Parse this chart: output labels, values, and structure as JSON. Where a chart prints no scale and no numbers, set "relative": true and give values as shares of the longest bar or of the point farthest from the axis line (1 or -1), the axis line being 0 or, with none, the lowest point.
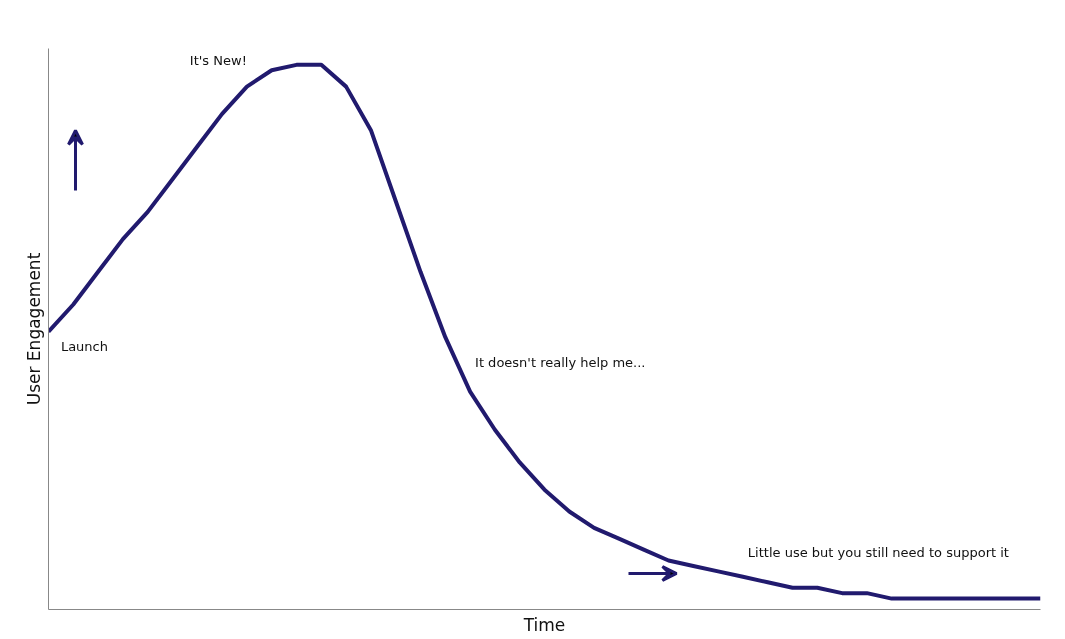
{
  "chart_data": {
    "type": "line",
    "relative": true,
    "xlabel": "Time",
    "ylabel": "User Engagement",
    "categories": [
      null,
      null,
      null,
      null,
      null,
      null,
      null,
      null,
      null,
      null,
      null,
      null,
      null,
      null,
      null,
      null,
      null,
      null,
      null,
      null,
      null,
      null,
      null,
      null,
      null,
      null,
      null,
      null,
      null,
      null,
      null,
      null,
      null,
      null,
      null,
      null,
      null,
      null,
      null,
      null,
      null
    ],
    "series": [
      {
        "color": "#211a6e",
        "values": [
          0.51,
          0.56,
          0.62,
          0.68,
          0.73,
          0.79,
          0.85,
          0.91,
          0.96,
          0.99,
          1.0,
          1.0,
          0.96,
          0.88,
          0.75,
          0.62,
          0.5,
          0.4,
          0.33,
          0.27,
          0.22,
          0.18,
          0.15,
          0.13,
          0.11,
          0.09,
          0.08,
          0.07,
          0.06,
          0.05,
          0.04,
          0.04,
          0.03,
          0.03,
          0.02,
          0.02,
          0.02,
          0.02,
          0.02,
          0.02,
          0.02
        ]
      }
    ],
    "annotations": [
      "Launch",
      "It's New!",
      "It doesn't really help me...",
      "Little use but you still need to support it"
    ],
    "marker": "none",
    "line_style": "solid"
  }
}
